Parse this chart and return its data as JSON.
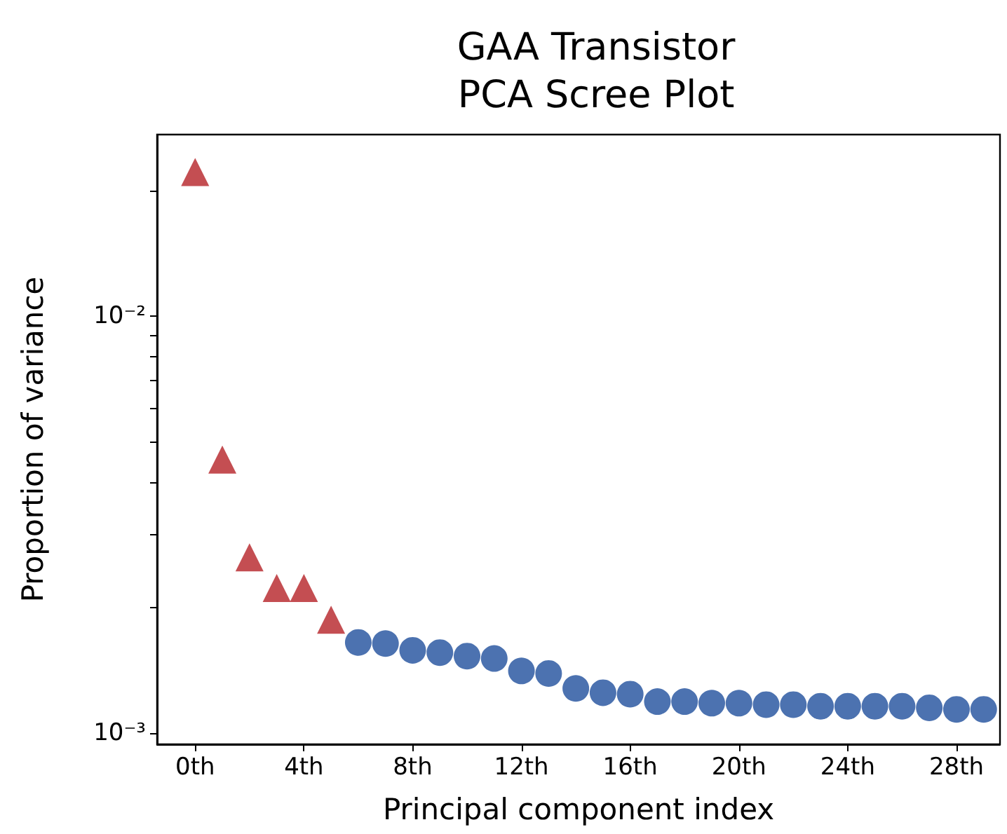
{
  "chart_data": {
    "type": "scatter",
    "title": "GAA Transistor\nPCA Scree Plot",
    "xlabel": "Principal component index",
    "ylabel": "Proportion of variance",
    "log": "y",
    "grid": false,
    "xlim": [
      -1.4,
      29.6
    ],
    "xticks": [
      {
        "value": 0,
        "label": "0th"
      },
      {
        "value": 4,
        "label": "4th"
      },
      {
        "value": 8,
        "label": "8th"
      },
      {
        "value": 12,
        "label": "12th"
      },
      {
        "value": 16,
        "label": "16th"
      },
      {
        "value": 20,
        "label": "20th"
      },
      {
        "value": 24,
        "label": "24th"
      },
      {
        "value": 28,
        "label": "28th"
      }
    ],
    "ylim": [
      0.00094,
      0.0273
    ],
    "yticks": [
      {
        "value": 0.001,
        "label": "10⁻³"
      },
      {
        "value": 0.002,
        "label": null
      },
      {
        "value": 0.003,
        "label": null
      },
      {
        "value": 0.004,
        "label": null
      },
      {
        "value": 0.005,
        "label": null
      },
      {
        "value": 0.006,
        "label": null
      },
      {
        "value": 0.007,
        "label": null
      },
      {
        "value": 0.008,
        "label": null
      },
      {
        "value": 0.009,
        "label": null
      },
      {
        "value": 0.01,
        "label": "10⁻²"
      },
      {
        "value": 0.02,
        "label": null
      }
    ],
    "series": [
      {
        "color": "#c44e52",
        "marker": "triangle",
        "x": [
          0,
          1,
          2,
          3,
          4,
          5
        ],
        "values": [
          0.0222,
          0.00453,
          0.00264,
          0.00223,
          0.00223,
          0.00187
        ]
      },
      {
        "color": "#4c72b0",
        "marker": "circle",
        "x": [
          6,
          7,
          8,
          9,
          10,
          11,
          12,
          13,
          14,
          15,
          16,
          17,
          18,
          19,
          20,
          21,
          22,
          23,
          24,
          25,
          26,
          27,
          28,
          29
        ],
        "values": [
          0.00165,
          0.00164,
          0.00158,
          0.00156,
          0.00153,
          0.00151,
          0.00141,
          0.00139,
          0.00128,
          0.00125,
          0.00124,
          0.00119,
          0.00119,
          0.00118,
          0.00118,
          0.00117,
          0.00117,
          0.00116,
          0.00116,
          0.00116,
          0.00116,
          0.00115,
          0.00114,
          0.00114
        ]
      }
    ]
  }
}
